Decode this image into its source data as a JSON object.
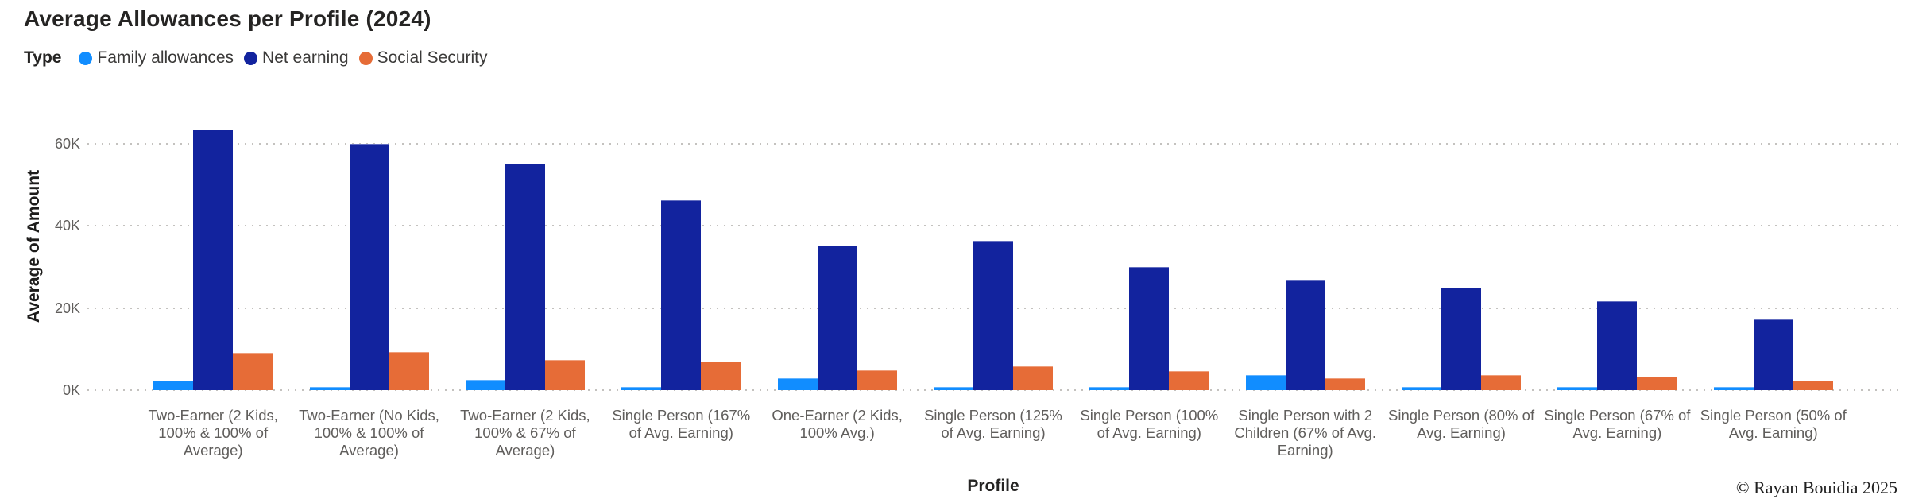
{
  "header": {
    "title": "Average Allowances per Profile (2024)"
  },
  "legend": {
    "label": "Type",
    "items": [
      {
        "name": "family-allowances",
        "label": "Family allowances",
        "color": "#118DFF"
      },
      {
        "name": "net-earning",
        "label": "Net earning",
        "color": "#12239E"
      },
      {
        "name": "social-security",
        "label": "Social Security",
        "color": "#E66C37"
      }
    ]
  },
  "chart_data": {
    "type": "bar",
    "title": "Average Allowances per Profile (2024)",
    "xlabel": "Profile",
    "ylabel": "Average of Amount",
    "unit": "K",
    "ylim": [
      0,
      70
    ],
    "grid": "horizontal-dotted",
    "legend_position": "top-left",
    "yticks": [
      {
        "label": "0K",
        "value": 0
      },
      {
        "label": "20K",
        "value": 20
      },
      {
        "label": "40K",
        "value": 40
      },
      {
        "label": "60K",
        "value": 60
      }
    ],
    "categories": [
      "Two-Earner (2 Kids, 100% & 100% of Average)",
      "Two-Earner (No Kids, 100% & 100% of Average)",
      "Two-Earner (2 Kids, 100% & 67% of Average)",
      "Single Person (167% of Avg. Earning)",
      "One-Earner (2 Kids, 100% Avg.)",
      "Single Person (125% of Avg. Earning)",
      "Single Person (100% of Avg. Earning)",
      "Single Person with 2 Children (67% of Avg. Earning)",
      "Single Person (80% of Avg. Earning)",
      "Single Person (67% of Avg. Earning)",
      "Single Person (50% of Avg. Earning)"
    ],
    "series": [
      {
        "name": "Family allowances",
        "color": "#118DFF",
        "values": [
          2.4,
          0.7,
          2.6,
          0.7,
          2.9,
          0.7,
          0.7,
          3.7,
          0.7,
          0.7,
          0.7
        ]
      },
      {
        "name": "Net earning",
        "color": "#12239E",
        "values": [
          63.4,
          60.0,
          55.2,
          46.2,
          35.2,
          36.3,
          30.0,
          26.9,
          25.0,
          21.7,
          17.2
        ]
      },
      {
        "name": "Social Security",
        "color": "#E66C37",
        "values": [
          9.0,
          9.2,
          7.4,
          7.0,
          4.8,
          5.8,
          4.7,
          3.0,
          3.7,
          3.2,
          2.4
        ]
      }
    ]
  },
  "footer": {
    "copyright": "© Rayan Bouidia 2025"
  }
}
